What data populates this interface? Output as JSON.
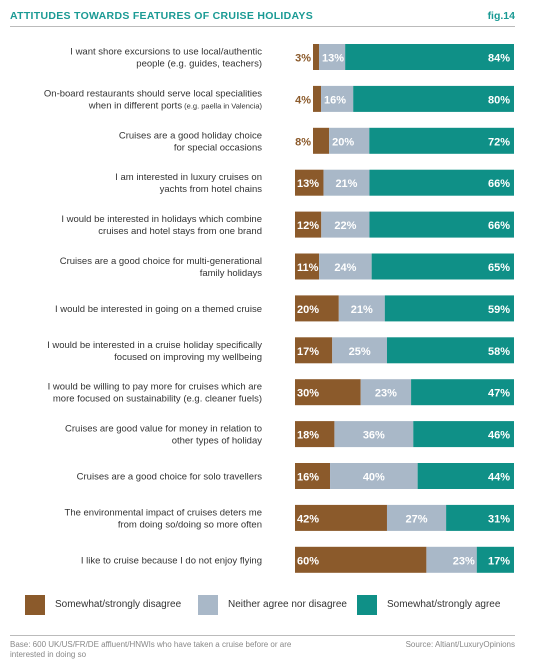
{
  "header": {
    "title": "ATTITUDES TOWARDS FEATURES OF CRUISE HOLIDAYS",
    "fig": "fig.14"
  },
  "colors": {
    "disagree": "#8b5a2b",
    "neither": "#a9b8c8",
    "agree": "#0f9087",
    "accent": "#1a9a94"
  },
  "legend": [
    "Somewhat/strongly disagree",
    "Neither agree nor disagree",
    "Somewhat/strongly agree"
  ],
  "footer": {
    "base": "Base: 600 UK/US/FR/DE affluent/HNWIs who have taken a cruise before or are interested in doing so",
    "source": "Source: Altiant/LuxuryOpinions"
  },
  "chart_data": {
    "type": "bar",
    "stacked": true,
    "orientation": "horizontal",
    "categories": [
      {
        "lines": [
          "I want shore excursions to use local/authentic",
          "people (e.g. guides, teachers)"
        ]
      },
      {
        "lines": [
          "On-board restaurants should serve local specialities",
          "when in different ports"
        ],
        "small": "(e.g. paella in Valencia)"
      },
      {
        "lines": [
          "Cruises are a good holiday choice",
          "for special occasions"
        ]
      },
      {
        "lines": [
          "I am interested in luxury cruises on",
          "yachts from hotel chains"
        ]
      },
      {
        "lines": [
          "I would be interested in holidays which combine",
          "cruises and hotel stays from one brand"
        ]
      },
      {
        "lines": [
          "Cruises are a good choice for multi-generational",
          "family holidays"
        ]
      },
      {
        "lines": [
          "I would be interested in going on a themed cruise"
        ]
      },
      {
        "lines": [
          "I would be interested in a cruise holiday specifically",
          "focused on improving my wellbeing"
        ]
      },
      {
        "lines": [
          "I would be willing to pay more for cruises which are",
          "more focused on sustainability (e.g. cleaner fuels)"
        ]
      },
      {
        "lines": [
          "Cruises are good value for money in relation to",
          "other types of holiday"
        ]
      },
      {
        "lines": [
          "Cruises are a good choice for solo travellers"
        ]
      },
      {
        "lines": [
          "The environmental impact of cruises deters me",
          "from doing so/doing so more often"
        ]
      },
      {
        "lines": [
          "I like to cruise because I do not enjoy flying"
        ]
      }
    ],
    "series": [
      {
        "name": "Somewhat/strongly disagree",
        "values": [
          3,
          4,
          8,
          13,
          12,
          11,
          20,
          17,
          30,
          18,
          16,
          42,
          60
        ]
      },
      {
        "name": "Neither agree nor disagree",
        "values": [
          13,
          16,
          20,
          21,
          22,
          24,
          21,
          25,
          23,
          36,
          40,
          27,
          23
        ]
      },
      {
        "name": "Somewhat/strongly agree",
        "values": [
          84,
          80,
          72,
          66,
          66,
          65,
          59,
          58,
          47,
          46,
          44,
          31,
          17
        ]
      }
    ],
    "labels_outside": [
      true,
      true,
      true,
      false,
      false,
      false,
      false,
      false,
      false,
      false,
      false,
      false,
      false
    ],
    "xlim": [
      0,
      100
    ],
    "legend_position": "bottom"
  }
}
